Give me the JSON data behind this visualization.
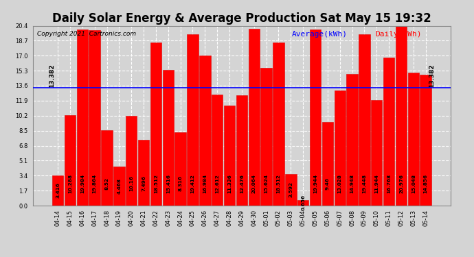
{
  "title": "Daily Solar Energy & Average Production Sat May 15 19:32",
  "copyright": "Copyright 2021  Cartronics.com",
  "average_label": "Average(kWh)",
  "daily_label": "Daily(kWh)",
  "average_value": 13.382,
  "categories": [
    "04-14",
    "04-15",
    "04-16",
    "04-17",
    "04-18",
    "04-19",
    "04-20",
    "04-21",
    "04-22",
    "04-23",
    "04-24",
    "04-25",
    "04-26",
    "04-27",
    "04-28",
    "04-29",
    "04-30",
    "05-01",
    "05-02",
    "05-03",
    "05-04",
    "05-05",
    "05-06",
    "05-07",
    "05-08",
    "05-09",
    "05-10",
    "05-11",
    "05-12",
    "05-13",
    "05-14"
  ],
  "values": [
    3.416,
    10.288,
    19.984,
    19.864,
    8.52,
    4.468,
    10.16,
    7.496,
    18.512,
    15.416,
    8.316,
    19.412,
    16.984,
    12.612,
    11.336,
    12.476,
    20.064,
    15.624,
    18.512,
    3.592,
    0.656,
    19.944,
    9.46,
    13.028,
    14.948,
    19.448,
    11.944,
    16.768,
    20.976,
    15.048,
    14.856
  ],
  "bar_color": "#ff0000",
  "bar_edge_color": "#dd0000",
  "average_line_color": "#0000ff",
  "background_color": "#d4d4d4",
  "plot_bg_color": "#d4d4d4",
  "ylim": [
    0.0,
    20.4
  ],
  "yticks": [
    0.0,
    1.7,
    3.4,
    5.1,
    6.8,
    8.5,
    10.2,
    11.9,
    13.6,
    15.3,
    17.0,
    18.7,
    20.4
  ],
  "grid_color": "#ffffff",
  "title_fontsize": 12,
  "tick_fontsize": 6,
  "bar_label_fontsize": 5.2,
  "avg_label_fontsize": 6.5,
  "copyright_fontsize": 6.5,
  "legend_fontsize": 8
}
